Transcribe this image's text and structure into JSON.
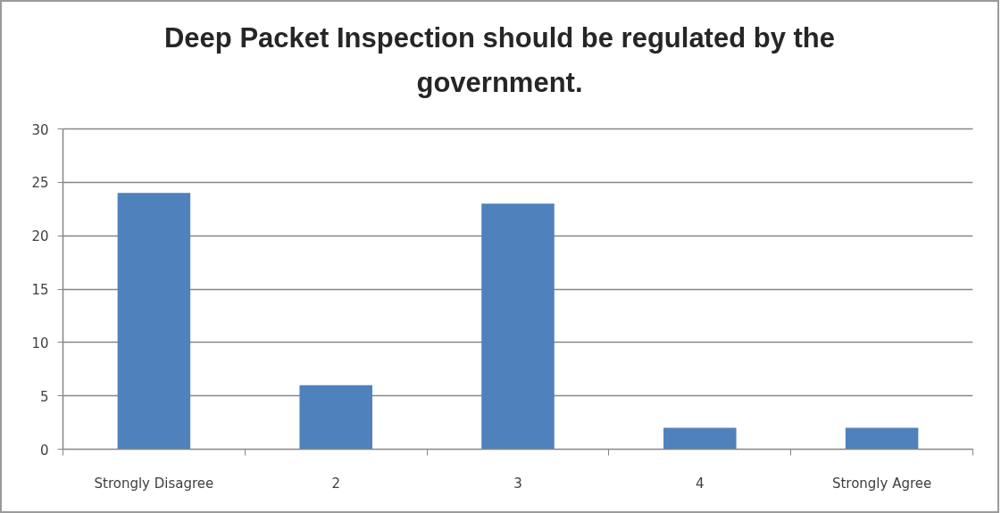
{
  "chart_data": {
    "type": "bar",
    "title": "Deep Packet Inspection should be regulated by the government.",
    "categories": [
      "Strongly Disagree",
      "2",
      "3",
      "4",
      "Strongly Agree"
    ],
    "values": [
      24,
      6,
      23,
      2,
      2
    ],
    "color": "#4f81bd",
    "ylim": [
      0,
      30
    ],
    "yticks": [
      0,
      5,
      10,
      15,
      20,
      25,
      30
    ],
    "grid": "y"
  }
}
